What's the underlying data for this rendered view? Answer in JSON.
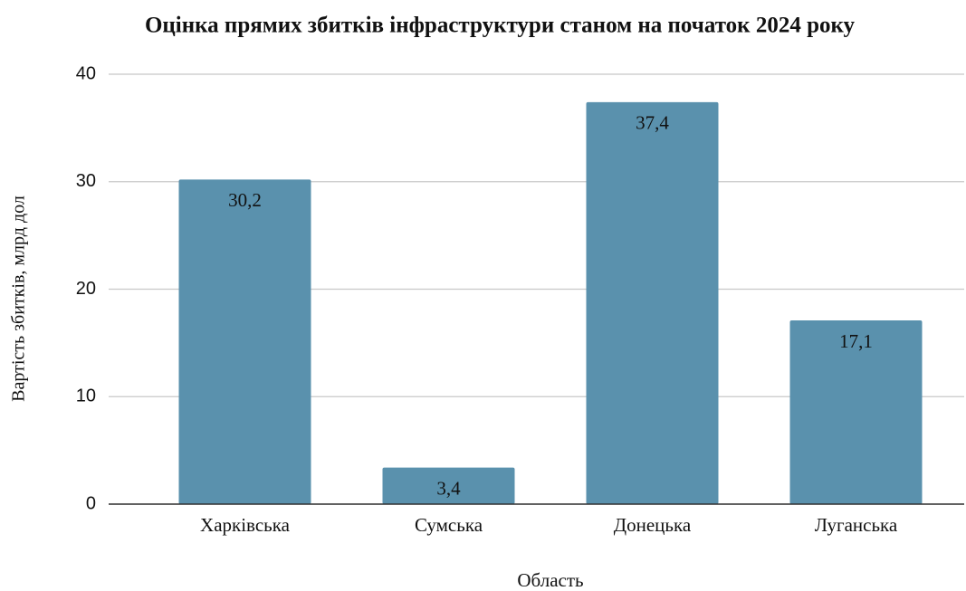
{
  "chart_data": {
    "type": "bar",
    "title": "Оцінка прямих збитків інфраструктури станом на початок 2024 року",
    "x_label": "Область",
    "y_label": "Вартість збитків, млрд дол",
    "categories": [
      "Харківська",
      "Сумська",
      "Донецька",
      "Луганська"
    ],
    "values": [
      30.2,
      3.4,
      37.4,
      17.1
    ],
    "value_labels": [
      "30,2",
      "3,4",
      "37,4",
      "17,1"
    ],
    "color": "#5a91ad",
    "ylim": [
      0,
      40
    ],
    "yticks": [
      0,
      10,
      20,
      30,
      40
    ],
    "grid": true
  }
}
